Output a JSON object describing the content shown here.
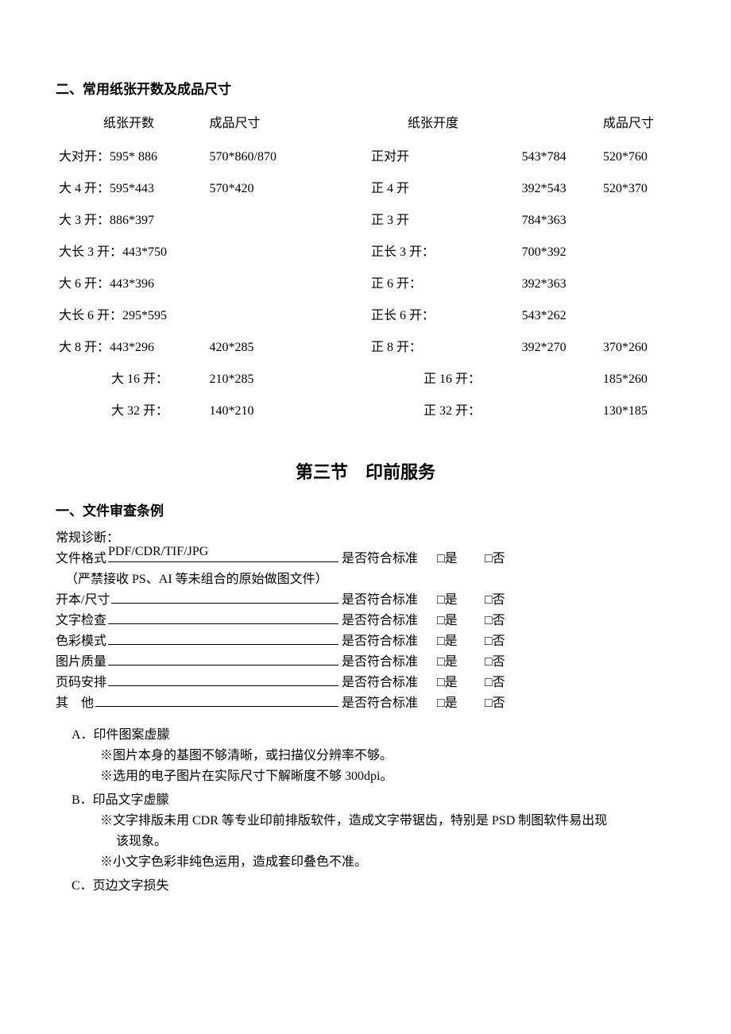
{
  "section2": {
    "title": "二、常用纸张开数及成品尺寸",
    "left_header_name": "纸张开数",
    "left_header_prod": "成品尺寸",
    "right_header_name": "纸张开度",
    "right_header_prod": "成品尺寸",
    "rows": [
      {
        "l_name": "大对开：595* 886",
        "l_prod": "570*860/870",
        "r_name": "正对开",
        "r_size": "543*784",
        "r_prod": "520*760"
      },
      {
        "l_name": "大 4 开：595*443",
        "l_prod": "570*420",
        "r_name": "正 4 开",
        "r_size": "392*543",
        "r_prod": "520*370"
      },
      {
        "l_name": "大 3 开：886*397",
        "l_prod": "",
        "r_name": "正 3 开",
        "r_size": "784*363",
        "r_prod": ""
      },
      {
        "l_name": "大长 3 开：443*750",
        "l_prod": "",
        "r_name": "正长 3 开：",
        "r_size": "700*392",
        "r_prod": ""
      },
      {
        "l_name": "大 6 开：443*396",
        "l_prod": "",
        "r_name": "正 6 开：",
        "r_size": "392*363",
        "r_prod": ""
      },
      {
        "l_name": "大长 6 开：295*595",
        "l_prod": "",
        "r_name": "正长 6 开：",
        "r_size": "543*262",
        "r_prod": ""
      },
      {
        "l_name": "大 8 开：443*296",
        "l_prod": "420*285",
        "r_name": "正 8 开：",
        "r_size": "392*270",
        "r_prod": "370*260"
      },
      {
        "l_name": "大 16 开：",
        "l_prod": "210*285",
        "r_name": "正 16 开：",
        "r_size": "",
        "r_prod": "185*260",
        "indent": true
      },
      {
        "l_name": "大 32 开：",
        "l_prod": "140*210",
        "r_name": "正 32 开：",
        "r_size": "",
        "r_prod": "130*185",
        "indent": true
      }
    ]
  },
  "section3": {
    "title": "第三节　印前服务",
    "sub1_title": "一、文件审查条例",
    "normal_diag": "常规诊断：",
    "std_label": "是否符合标准",
    "yes_label": "□是",
    "no_label": "□否",
    "file_format": {
      "label": "文件格式",
      "value": " PDF/CDR/TIF/JPG",
      "note": "（严禁接收 PS、AI 等未组合的原始做图文件）"
    },
    "checks": [
      {
        "label": "开本/尺寸"
      },
      {
        "label": "文字检查"
      },
      {
        "label": "色彩模式"
      },
      {
        "label": "图片质量"
      },
      {
        "label": "页码安排"
      },
      {
        "label": "其　他"
      }
    ],
    "abc": {
      "a_head": "A．印件图案虚朦",
      "a_subs": [
        "※图片本身的基图不够清晰，或扫描仪分辨率不够。",
        "※选用的电子图片在实际尺寸下解晰度不够 300dpi。"
      ],
      "b_head": "B．印品文字虚朦",
      "b_sub1": "※文字排版未用 CDR 等专业印前排版软件，造成文字带锯齿，特别是 PSD 制图软件易出现",
      "b_sub1_cont": "该现象。",
      "b_sub2": "※小文字色彩非纯色运用，造成套印叠色不准。",
      "c_head": "C．页边文字损失"
    }
  }
}
